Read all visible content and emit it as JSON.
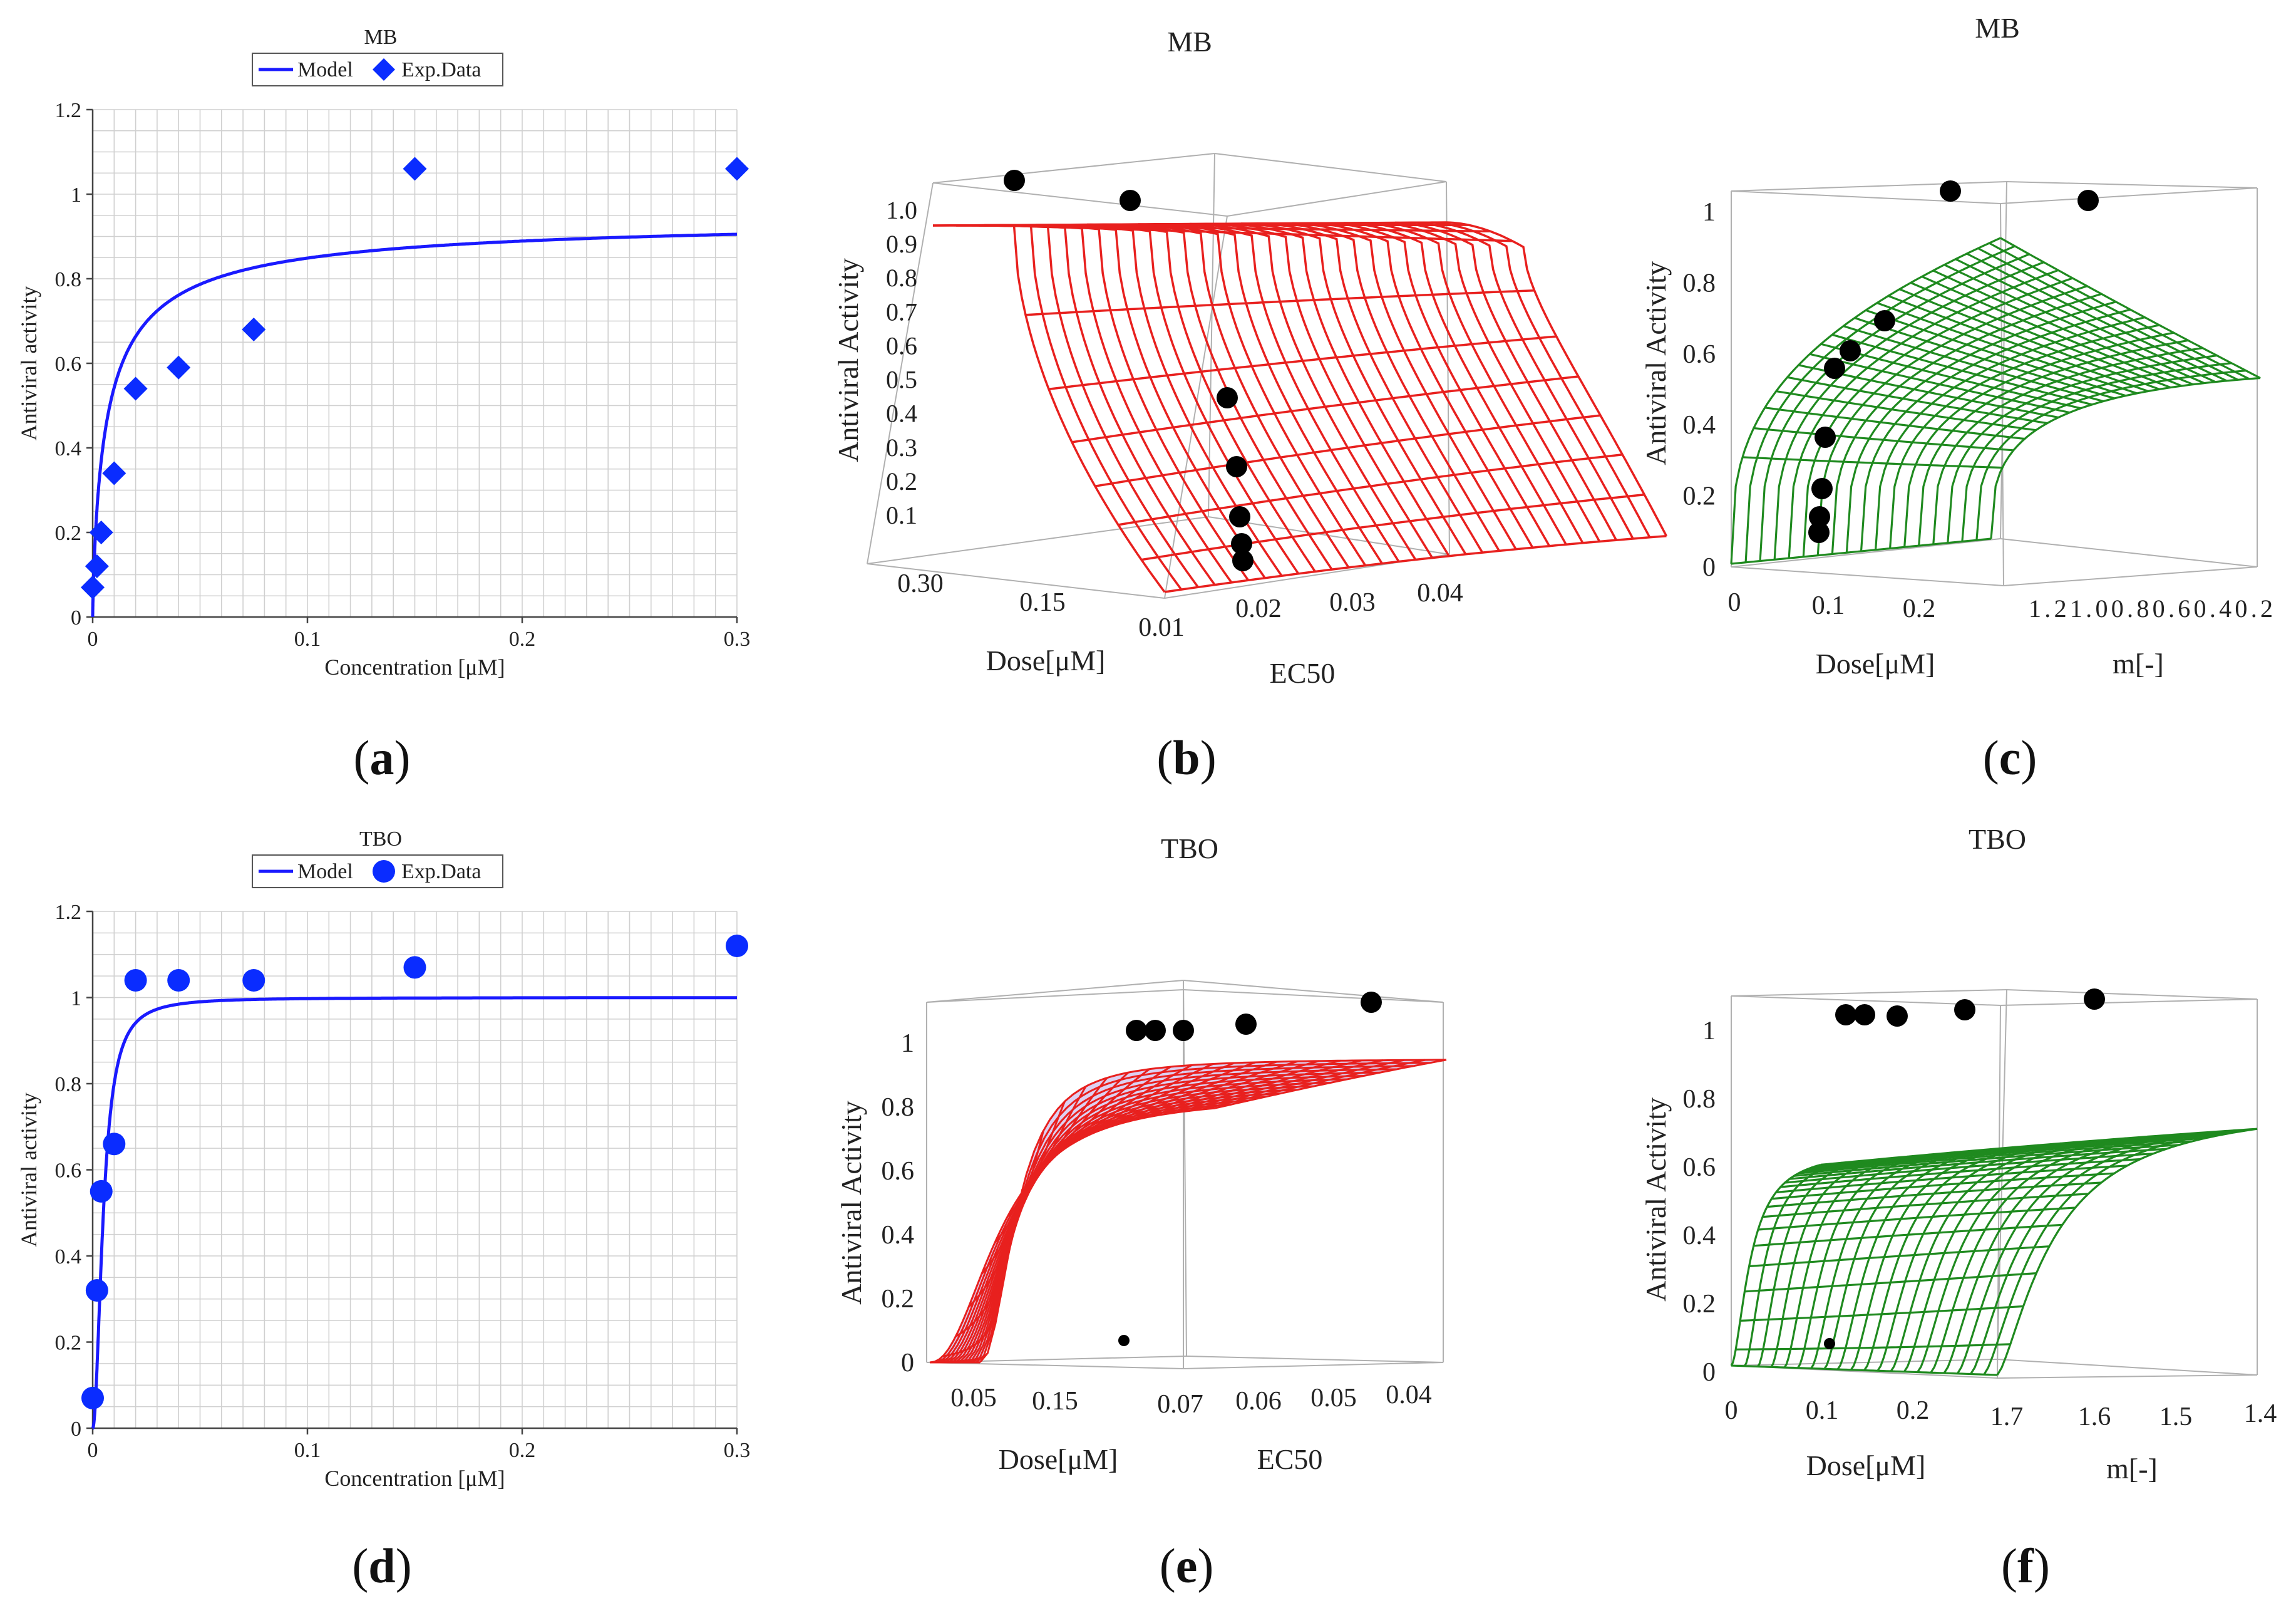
{
  "colors": {
    "model_line": "#1a1aff",
    "points_2d": "#0a2cff",
    "surface_red": "#e8201e",
    "surface_green": "#1f8a1f",
    "surface_fill_e": "#d7c8ee",
    "points_3d": "#000000",
    "grid": "#d0d0d0"
  },
  "captions": {
    "a": "a",
    "b": "b",
    "c": "c",
    "d": "d",
    "e": "e",
    "f": "f"
  },
  "chart_data": [
    {
      "id": "a",
      "type": "scatter",
      "title": "MB",
      "xlabel": "Concentration [μM]",
      "ylabel": "Antiviral activity",
      "xlim": [
        0,
        0.3
      ],
      "ylim": [
        0,
        1.2
      ],
      "xticks": [
        "0",
        "0.1",
        "0.2",
        "0.3"
      ],
      "yticks": [
        "0",
        "0.2",
        "0.4",
        "0.6",
        "0.8",
        "1",
        "1.2"
      ],
      "grid": true,
      "legend_position": "top-center",
      "series": [
        {
          "name": "Model",
          "kind": "line",
          "emax": 0.95,
          "ec50": 0.007,
          "m": 0.8
        },
        {
          "name": "Exp.Data",
          "kind": "points",
          "marker": "diamond",
          "x": [
            0.0,
            0.002,
            0.004,
            0.01,
            0.02,
            0.04,
            0.075,
            0.15,
            0.3
          ],
          "y": [
            0.07,
            0.12,
            0.2,
            0.34,
            0.54,
            0.59,
            0.68,
            1.06,
            1.06
          ]
        }
      ]
    },
    {
      "id": "b",
      "type": "surface",
      "title": "MB",
      "zlabel": "Antiviral Activity",
      "xlabel": "Dose[μM]",
      "ylabel": "EC50",
      "zticks": [
        "0.1",
        "0.2",
        "0.3",
        "0.4",
        "0.5",
        "0.6",
        "0.7",
        "0.8",
        "0.9",
        "1.0"
      ],
      "xticks": [
        "0.30",
        "0.15",
        "0.01"
      ],
      "yticks": [
        "0.02",
        "0.03",
        "0.04"
      ],
      "surface_color": "red"
    },
    {
      "id": "c",
      "type": "surface",
      "title": "MB",
      "zlabel": "Antiviral Activity",
      "xlabel": "Dose[μM]",
      "ylabel": "m[-]",
      "zticks": [
        "0",
        "0.2",
        "0.4",
        "0.6",
        "0.8",
        "1"
      ],
      "xticks": [
        "0",
        "0.1",
        "0.2"
      ],
      "yticks": [
        "1.21.00.80.60.40.2"
      ],
      "surface_color": "green"
    },
    {
      "id": "d",
      "type": "scatter",
      "title": "TBO",
      "xlabel": "Concentration [μM]",
      "ylabel": "Antiviral activity",
      "xlim": [
        0,
        0.3
      ],
      "ylim": [
        0,
        1.2
      ],
      "xticks": [
        "0",
        "0.1",
        "0.2",
        "0.3"
      ],
      "yticks": [
        "0",
        "0.2",
        "0.4",
        "0.6",
        "0.8",
        "1",
        "1.2"
      ],
      "grid": true,
      "legend_position": "top-center",
      "series": [
        {
          "name": "Model",
          "kind": "line",
          "emax": 1.0,
          "ec50": 0.005,
          "m": 2.0
        },
        {
          "name": "Exp.Data",
          "kind": "points",
          "marker": "circle",
          "x": [
            0.0,
            0.002,
            0.004,
            0.01,
            0.02,
            0.04,
            0.075,
            0.15,
            0.3
          ],
          "y": [
            0.07,
            0.32,
            0.55,
            0.66,
            1.04,
            1.04,
            1.04,
            1.07,
            1.12
          ]
        }
      ]
    },
    {
      "id": "e",
      "type": "surface",
      "title": "TBO",
      "zlabel": "Antiviral Activity",
      "xlabel": "Dose[μM]",
      "ylabel": "EC50",
      "zticks": [
        "0",
        "0.2",
        "0.4",
        "0.6",
        "0.8",
        "1"
      ],
      "xticks": [
        "0.05",
        "0.15",
        "0.07"
      ],
      "yticks": [
        "0.06",
        "0.05",
        "0.04"
      ],
      "surface_color": "red"
    },
    {
      "id": "f",
      "type": "surface",
      "title": "TBO",
      "zlabel": "Antiviral Activity",
      "xlabel": "Dose[μM]",
      "ylabel": "m[-]",
      "zticks": [
        "0",
        "0.2",
        "0.4",
        "0.6",
        "0.8",
        "1"
      ],
      "xticks": [
        "0",
        "0.1",
        "0.2"
      ],
      "yticks": [
        "1.7",
        "1.6",
        "1.5",
        "1.4"
      ],
      "surface_color": "green"
    }
  ]
}
